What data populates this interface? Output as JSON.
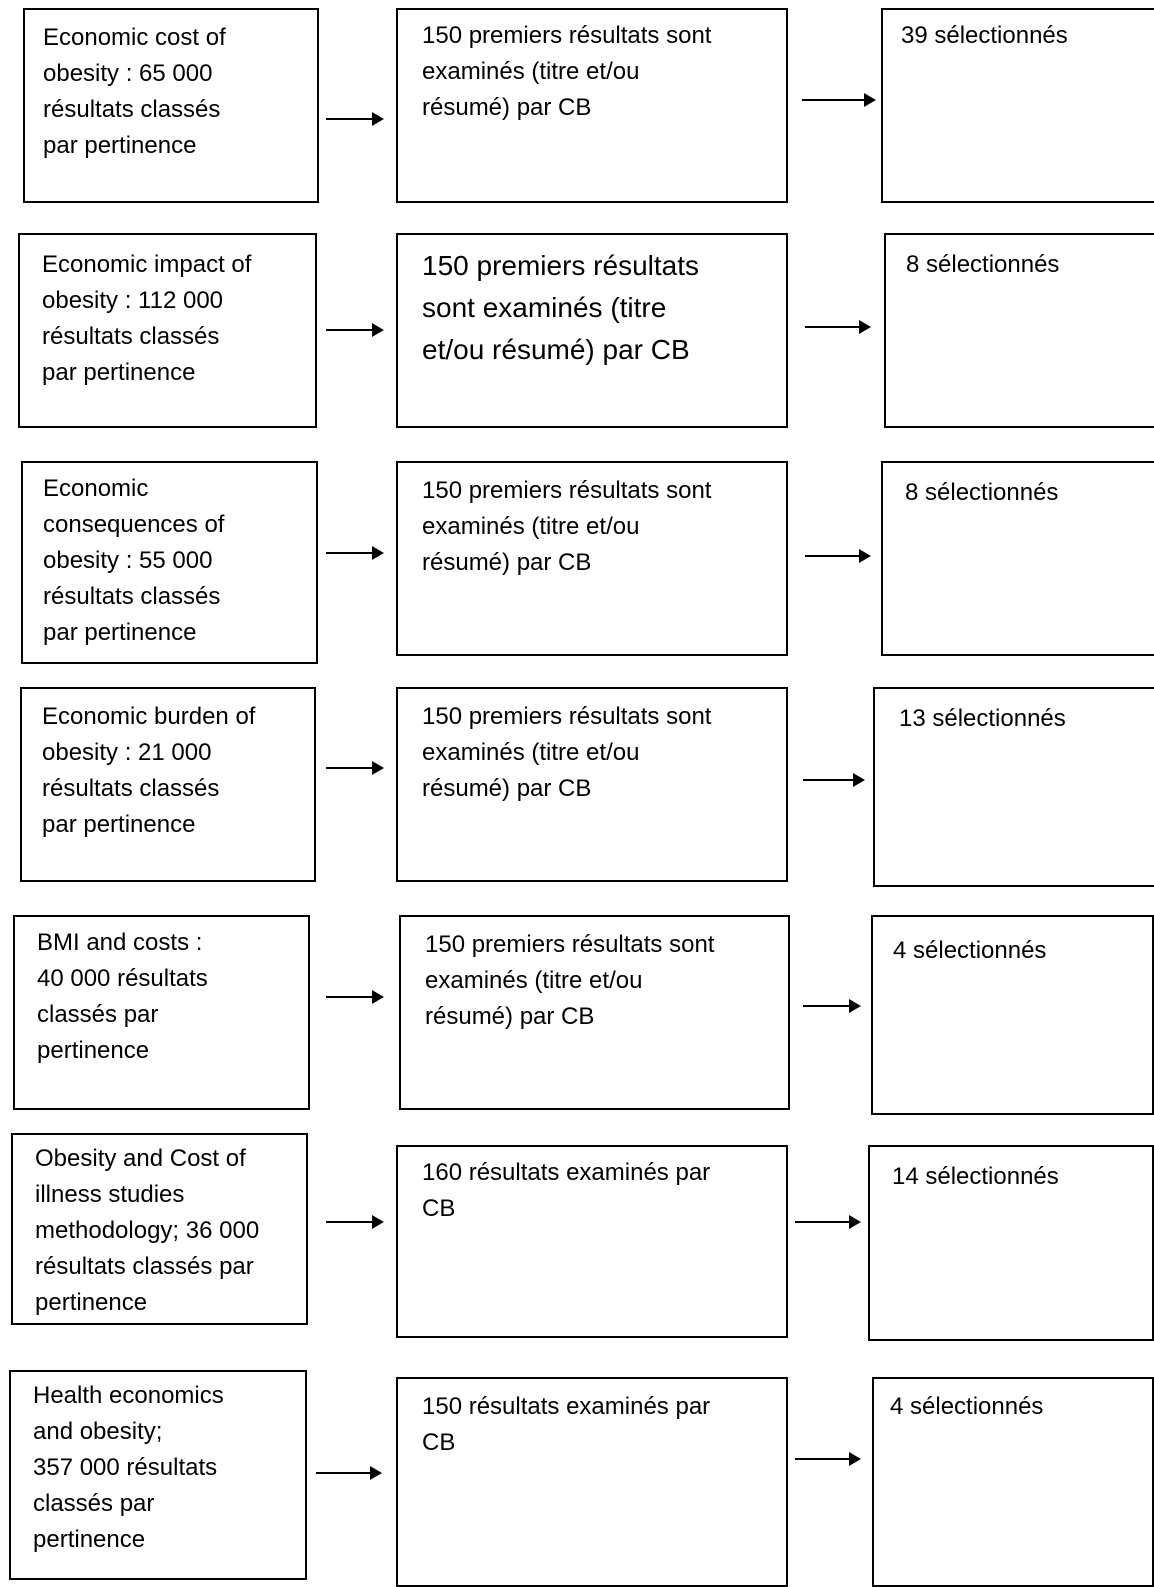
{
  "rows": [
    {
      "query": "Economic cost of\nobesity : 65 000\nrésultats classés\npar pertinence",
      "review": "150 premiers résultats sont\nexaminés (titre et/ou\nrésumé) par CB",
      "selected": "39 sélectionnés"
    },
    {
      "query": "Economic impact of\nobesity : 112 000\nrésultats classés\npar pertinence",
      "review": "150 premiers résultats\nsont examinés (titre\net/ou résumé) par CB",
      "selected": "8 sélectionnés"
    },
    {
      "query": "Economic\nconsequences of\nobesity : 55 000\nrésultats classés\npar pertinence",
      "review": "150 premiers résultats sont\nexaminés (titre et/ou\nrésumé) par CB",
      "selected": "8 sélectionnés"
    },
    {
      "query": "Economic burden of\nobesity : 21 000\nrésultats classés\npar pertinence",
      "review": "150 premiers résultats sont\nexaminés (titre et/ou\nrésumé) par CB",
      "selected": "13 sélectionnés"
    },
    {
      "query": "BMI and costs :\n40 000 résultats\nclassés par\npertinence",
      "review": "150 premiers résultats sont\nexaminés (titre et/ou\nrésumé) par CB",
      "selected": "4 sélectionnés"
    },
    {
      "query": "Obesity and Cost of\nillness studies\nmethodology; 36 000\nrésultats classés par\npertinence",
      "review": "160 résultats examinés par\nCB",
      "selected": "14 sélectionnés"
    },
    {
      "query": "Health economics\nand obesity;\n357 000 résultats\nclassés par\npertinence",
      "review": "150 résultats examinés par\nCB",
      "selected": "4 sélectionnés"
    }
  ]
}
